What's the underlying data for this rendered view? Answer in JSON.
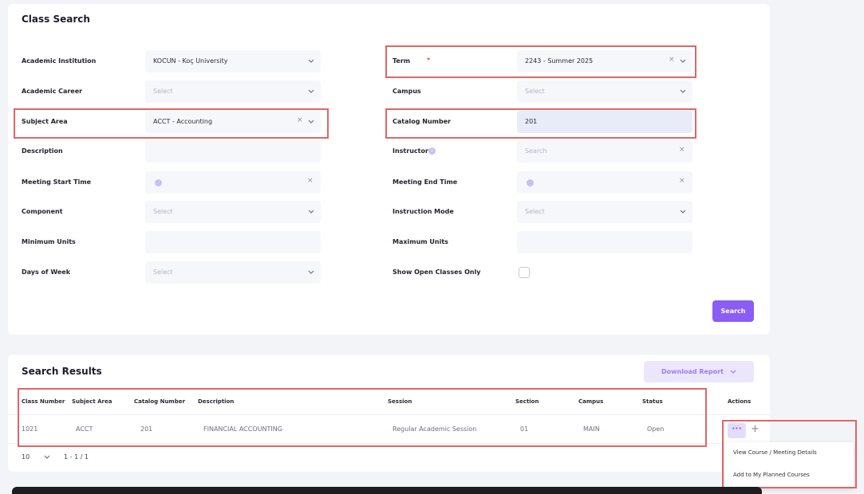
{
  "search_form": {
    "title": "Class Search",
    "left_fields": [
      {
        "label": "Academic Institution",
        "value": "KOCUN - Koç University"
      },
      {
        "label": "Academic Career",
        "placeholder": "Select"
      },
      {
        "label": "Subject Area",
        "value": "ACCT - Accounting"
      },
      {
        "label": "Description"
      },
      {
        "label": "Meeting Start Time"
      },
      {
        "label": "Component",
        "placeholder": "Select"
      },
      {
        "label": "Minimum Units"
      },
      {
        "label": "Days of Week",
        "placeholder": "Select"
      }
    ],
    "right_fields": [
      {
        "label": "Term",
        "required": "*",
        "value": "2243 - Summer 2025"
      },
      {
        "label": "Campus",
        "placeholder": "Select"
      },
      {
        "label": "Catalog Number",
        "value": "201"
      },
      {
        "label": "Instructor",
        "placeholder": "Search"
      },
      {
        "label": "Meeting End Time"
      },
      {
        "label": "Instruction Mode",
        "placeholder": "Select"
      },
      {
        "label": "Maximum Units"
      },
      {
        "label": "Show Open Classes Only"
      }
    ],
    "search_button": "Search"
  },
  "results": {
    "title": "Search Results",
    "download_button": "Download Report",
    "columns": [
      "Class Number",
      "Subject Area",
      "Catalog Number",
      "Description",
      "Session",
      "Section",
      "Campus",
      "Status",
      "Actions"
    ],
    "rows": [
      [
        "1021",
        "ACCT",
        "201",
        "FINANCIAL ACCOUNTING",
        "Regular Academic Session",
        "01",
        "MAIN",
        "Open"
      ]
    ],
    "page_size": "10",
    "range": "1 - 1 / 1",
    "menu": [
      "View Course / Meeting Details",
      "Add to My Planned Courses"
    ]
  }
}
